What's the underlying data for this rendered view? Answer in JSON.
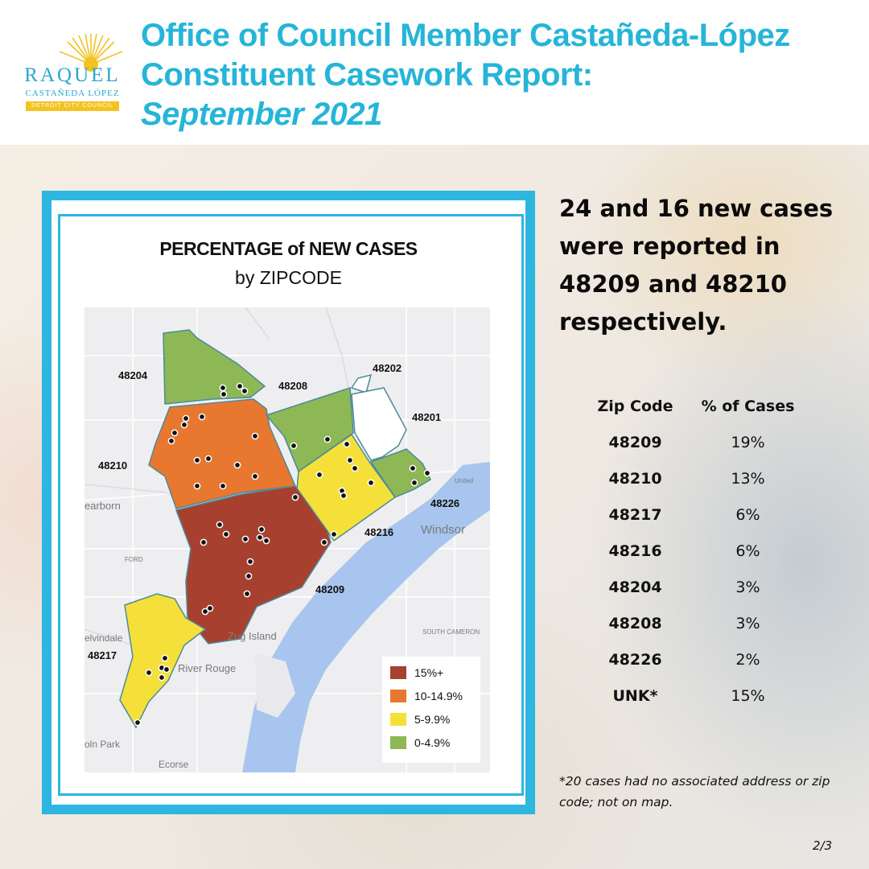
{
  "logo": {
    "name_line1": "RAQUEL",
    "name_line2": "CASTAÑEDA LÓPEZ",
    "council": "DETROIT CITY COUNCIL"
  },
  "title": {
    "line1": "Office of Council Member Castañeda-López",
    "line2": "Constituent Casework Report:",
    "line3": "September 2021"
  },
  "map": {
    "title_line1": "PERCENTAGE of NEW CASES",
    "title_line2": "by ZIPCODE",
    "zip_labels": [
      "48204",
      "48208",
      "48202",
      "48201",
      "48210",
      "48226",
      "48216",
      "48209",
      "48217"
    ],
    "place_labels": [
      "earborn",
      "Windsor",
      "Zug Island",
      "River Rouge",
      "elvindale",
      "oln Park",
      "Ecorse",
      "SOUTH CAMERON",
      "FORD",
      "United"
    ],
    "legend": [
      {
        "label": "15%+",
        "color": "#a8402f"
      },
      {
        "label": "10-14.9%",
        "color": "#e8772f"
      },
      {
        "label": "5-9.9%",
        "color": "#f5e03a"
      },
      {
        "label": "0-4.9%",
        "color": "#8db855"
      }
    ]
  },
  "summary": {
    "text": "24 and 16 new cases were reported in 48209 and 48210 respectively."
  },
  "table": {
    "headers": [
      "Zip Code",
      "% of Cases"
    ],
    "rows": [
      [
        "48209",
        "19%"
      ],
      [
        "48210",
        "13%"
      ],
      [
        "48217",
        "6%"
      ],
      [
        "48216",
        "6%"
      ],
      [
        "48204",
        "3%"
      ],
      [
        "48208",
        "3%"
      ],
      [
        "48226",
        "2%"
      ],
      [
        "UNK*",
        "15%"
      ]
    ]
  },
  "footnote": "*20 cases had no associated address or zip code; not on map.",
  "page": "2/3"
}
